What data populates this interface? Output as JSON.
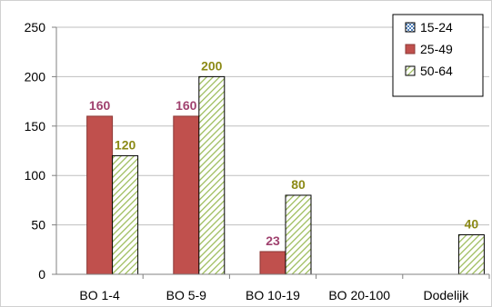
{
  "chart_data": {
    "type": "bar",
    "categories": [
      "BO 1-4",
      "BO 5-9",
      "BO 10-19",
      "BO 20-100",
      "Dodelijk"
    ],
    "series": [
      {
        "name": "15-24",
        "values": [
          null,
          null,
          null,
          null,
          null
        ],
        "color": "#4F81BD",
        "pattern": "checker",
        "label_color": "#4F81BD"
      },
      {
        "name": "25-49",
        "values": [
          160,
          160,
          23,
          null,
          null
        ],
        "color": "#C0504D",
        "pattern": "solid",
        "label_color": "#A0426F"
      },
      {
        "name": "50-64",
        "values": [
          120,
          200,
          80,
          null,
          40
        ],
        "color": "#9BBB59",
        "pattern": "diagonal",
        "label_color": "#8C8A16"
      }
    ],
    "yticks": [
      "0",
      "50",
      "100",
      "150",
      "200",
      "250"
    ],
    "ylim": [
      0,
      250
    ],
    "grid": "horizontal",
    "legend": "top-right"
  }
}
